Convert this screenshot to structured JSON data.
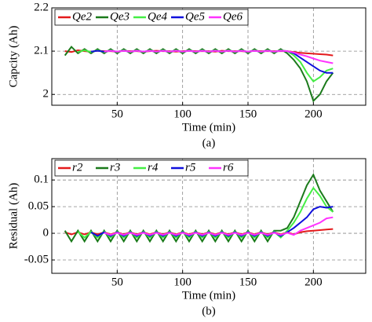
{
  "chart_data": [
    {
      "type": "line",
      "ylabel": "Capcity (Ah)",
      "xlabel": "Time (min)",
      "caption": "(a)",
      "x": [
        10,
        15,
        20,
        25,
        30,
        35,
        40,
        45,
        50,
        55,
        60,
        65,
        70,
        75,
        80,
        85,
        90,
        95,
        100,
        105,
        110,
        115,
        120,
        125,
        130,
        135,
        140,
        145,
        150,
        155,
        160,
        165,
        170,
        175,
        180,
        185,
        190,
        195,
        200,
        205,
        210,
        215
      ],
      "xlim": [
        0,
        240
      ],
      "xticks": [
        50,
        100,
        150,
        200
      ],
      "ylim": [
        1.975,
        2.2
      ],
      "yticks": [
        2,
        2.1,
        2.2
      ],
      "grid": true,
      "legend": "upper left",
      "series": [
        {
          "name": "Qe2",
          "color": "#e41a1c",
          "values": [
            2.1,
            2.098,
            2.102,
            2.1,
            2.099,
            2.101,
            2.1,
            2.1,
            2.099,
            2.101,
            2.1,
            2.1,
            2.099,
            2.1,
            2.101,
            2.1,
            2.1,
            2.099,
            2.1,
            2.101,
            2.1,
            2.1,
            2.1,
            2.099,
            2.101,
            2.1,
            2.1,
            2.1,
            2.099,
            2.101,
            2.1,
            2.1,
            2.1,
            2.1,
            2.1,
            2.098,
            2.096,
            2.095,
            2.094,
            2.093,
            2.092,
            2.09
          ]
        },
        {
          "name": "Qe3",
          "color": "#1b7a1b",
          "values": [
            2.09,
            2.11,
            2.095,
            2.105,
            2.095,
            2.105,
            2.095,
            2.105,
            2.095,
            2.105,
            2.095,
            2.105,
            2.095,
            2.105,
            2.095,
            2.105,
            2.095,
            2.105,
            2.095,
            2.105,
            2.095,
            2.105,
            2.095,
            2.105,
            2.095,
            2.105,
            2.095,
            2.105,
            2.095,
            2.105,
            2.095,
            2.105,
            2.095,
            2.105,
            2.095,
            2.08,
            2.06,
            2.03,
            1.985,
            2.0,
            2.03,
            2.05
          ]
        },
        {
          "name": "Qe4",
          "color": "#44ee44",
          "values": [
            null,
            null,
            2.098,
            2.102,
            2.098,
            2.102,
            2.098,
            2.102,
            2.098,
            2.102,
            2.098,
            2.102,
            2.098,
            2.102,
            2.098,
            2.102,
            2.098,
            2.102,
            2.098,
            2.102,
            2.098,
            2.102,
            2.098,
            2.102,
            2.098,
            2.102,
            2.098,
            2.102,
            2.098,
            2.102,
            2.098,
            2.102,
            2.098,
            2.102,
            2.1,
            2.09,
            2.075,
            2.05,
            2.03,
            2.04,
            2.055,
            2.06
          ]
        },
        {
          "name": "Qe5",
          "color": "#1010dd",
          "values": [
            null,
            null,
            null,
            null,
            2.099,
            2.101,
            2.099,
            2.101,
            2.099,
            2.101,
            2.099,
            2.101,
            2.099,
            2.101,
            2.099,
            2.101,
            2.099,
            2.101,
            2.099,
            2.101,
            2.099,
            2.101,
            2.099,
            2.101,
            2.099,
            2.101,
            2.099,
            2.101,
            2.099,
            2.101,
            2.099,
            2.101,
            2.099,
            2.101,
            2.1,
            2.095,
            2.085,
            2.075,
            2.065,
            2.055,
            2.05,
            2.05
          ]
        },
        {
          "name": "Qe6",
          "color": "#ff33ff",
          "values": [
            null,
            null,
            null,
            null,
            null,
            null,
            2.099,
            2.101,
            2.099,
            2.101,
            2.099,
            2.101,
            2.099,
            2.101,
            2.099,
            2.101,
            2.099,
            2.101,
            2.099,
            2.101,
            2.099,
            2.101,
            2.099,
            2.101,
            2.099,
            2.101,
            2.099,
            2.101,
            2.099,
            2.101,
            2.099,
            2.101,
            2.099,
            2.101,
            2.1,
            2.097,
            2.092,
            2.088,
            2.083,
            2.078,
            2.075,
            2.072
          ]
        }
      ]
    },
    {
      "type": "line",
      "ylabel": "Residual (Ah)",
      "xlabel": "Time (min)",
      "caption": "(b)",
      "x": [
        10,
        15,
        20,
        25,
        30,
        35,
        40,
        45,
        50,
        55,
        60,
        65,
        70,
        75,
        80,
        85,
        90,
        95,
        100,
        105,
        110,
        115,
        120,
        125,
        130,
        135,
        140,
        145,
        150,
        155,
        160,
        165,
        170,
        175,
        180,
        185,
        190,
        195,
        200,
        205,
        210,
        215
      ],
      "xlim": [
        0,
        240
      ],
      "xticks": [
        50,
        100,
        150,
        200
      ],
      "ylim": [
        -0.075,
        0.14
      ],
      "yticks": [
        -0.05,
        0,
        0.05,
        0.1
      ],
      "grid": true,
      "legend": "upper left",
      "series": [
        {
          "name": "r2",
          "color": "#e41a1c",
          "values": [
            0.002,
            -0.002,
            0.002,
            -0.002,
            0.002,
            -0.002,
            0.002,
            -0.002,
            0.002,
            -0.002,
            0.002,
            -0.002,
            0.002,
            -0.002,
            0.002,
            -0.002,
            0.002,
            -0.002,
            0.002,
            -0.002,
            0.002,
            -0.002,
            0.002,
            -0.002,
            0.002,
            -0.002,
            0.002,
            -0.002,
            0.002,
            -0.002,
            0.002,
            -0.002,
            0.002,
            -0.002,
            0.002,
            -0.002,
            0.002,
            0.004,
            0.005,
            0.006,
            0.007,
            0.008
          ]
        },
        {
          "name": "r3",
          "color": "#1b7a1b",
          "values": [
            0.005,
            -0.015,
            0.005,
            -0.015,
            0.005,
            -0.015,
            0.005,
            -0.015,
            0.005,
            -0.015,
            0.005,
            -0.015,
            0.005,
            -0.015,
            0.005,
            -0.015,
            0.005,
            -0.015,
            0.005,
            -0.015,
            0.005,
            -0.015,
            0.005,
            -0.015,
            0.005,
            -0.015,
            0.005,
            -0.015,
            0.005,
            -0.015,
            0.005,
            -0.015,
            0.005,
            0.005,
            0.01,
            0.03,
            0.06,
            0.09,
            0.11,
            0.08,
            0.06,
            0.04
          ]
        },
        {
          "name": "r4",
          "color": "#44ee44",
          "values": [
            null,
            null,
            0.003,
            -0.008,
            0.003,
            -0.008,
            0.003,
            -0.008,
            0.003,
            -0.008,
            0.003,
            -0.008,
            0.003,
            -0.008,
            0.003,
            -0.008,
            0.003,
            -0.008,
            0.003,
            -0.008,
            0.003,
            -0.008,
            0.003,
            -0.008,
            0.003,
            -0.008,
            0.003,
            -0.008,
            0.003,
            -0.008,
            0.003,
            -0.008,
            0.003,
            -0.008,
            0.005,
            0.02,
            0.04,
            0.065,
            0.085,
            0.07,
            0.05,
            0.04
          ]
        },
        {
          "name": "r5",
          "color": "#1010dd",
          "values": [
            null,
            null,
            null,
            null,
            0.002,
            -0.005,
            0.002,
            -0.005,
            0.002,
            -0.005,
            0.002,
            -0.005,
            0.002,
            -0.005,
            0.002,
            -0.005,
            0.002,
            -0.005,
            0.002,
            -0.005,
            0.002,
            -0.005,
            0.002,
            -0.005,
            0.002,
            -0.005,
            0.002,
            -0.005,
            0.002,
            -0.005,
            0.002,
            -0.005,
            0.002,
            -0.005,
            0.002,
            0.01,
            0.02,
            0.03,
            0.045,
            0.05,
            0.048,
            0.05
          ]
        },
        {
          "name": "r6",
          "color": "#ff33ff",
          "values": [
            null,
            null,
            null,
            null,
            null,
            null,
            0.001,
            -0.003,
            0.001,
            -0.003,
            0.001,
            -0.003,
            0.001,
            -0.003,
            0.001,
            -0.003,
            0.001,
            -0.003,
            0.001,
            -0.003,
            0.001,
            -0.003,
            0.001,
            -0.003,
            0.001,
            -0.003,
            0.001,
            -0.003,
            0.001,
            -0.003,
            0.001,
            -0.003,
            0.001,
            -0.003,
            0.001,
            -0.003,
            0.005,
            0.01,
            0.015,
            0.02,
            0.028,
            0.03
          ]
        }
      ]
    }
  ]
}
